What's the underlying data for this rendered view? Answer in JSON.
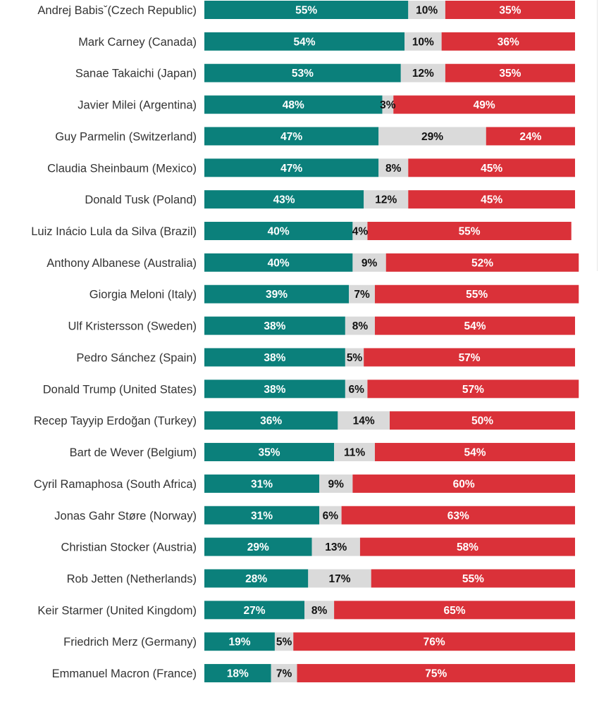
{
  "chart_data": {
    "type": "bar",
    "orientation": "horizontal",
    "stacked": true,
    "xlim": [
      0,
      100
    ],
    "grid": false,
    "legend": "none",
    "colors": [
      "#0b807b",
      "#dadada",
      "#da3139"
    ],
    "categories": [
      "Andrej Babisˇ(Czech Republic)",
      "Mark Carney (Canada)",
      "Sanae Takaichi (Japan)",
      "Javier Milei (Argentina)",
      "Guy Parmelin (Switzerland)",
      "Claudia Sheinbaum (Mexico)",
      "Donald Tusk (Poland)",
      "Luiz Inácio Lula da Silva (Brazil)",
      "Anthony Albanese (Australia)",
      "Giorgia Meloni (Italy)",
      "Ulf Kristersson (Sweden)",
      "Pedro Sánchez (Spain)",
      "Donald Trump (United States)",
      "Recep Tayyip Erdoğan (Turkey)",
      "Bart de Wever (Belgium)",
      "Cyril Ramaphosa (South Africa)",
      "Jonas Gahr Støre (Norway)",
      "Christian Stocker (Austria)",
      "Rob Jetten (Netherlands)",
      "Keir Starmer (United Kingdom)",
      "Friedrich Merz (Germany)",
      "Emmanuel Macron (France)"
    ],
    "series": [
      {
        "values": [
          55,
          54,
          53,
          48,
          47,
          47,
          43,
          40,
          40,
          39,
          38,
          38,
          38,
          36,
          35,
          31,
          31,
          29,
          28,
          27,
          19,
          18
        ]
      },
      {
        "values": [
          10,
          10,
          12,
          3,
          29,
          8,
          12,
          4,
          9,
          7,
          8,
          5,
          6,
          14,
          11,
          9,
          6,
          13,
          17,
          8,
          5,
          7
        ]
      },
      {
        "values": [
          35,
          36,
          35,
          49,
          24,
          45,
          45,
          55,
          52,
          55,
          54,
          57,
          57,
          50,
          54,
          60,
          63,
          58,
          55,
          65,
          76,
          75
        ]
      }
    ],
    "value_suffix": "%"
  }
}
